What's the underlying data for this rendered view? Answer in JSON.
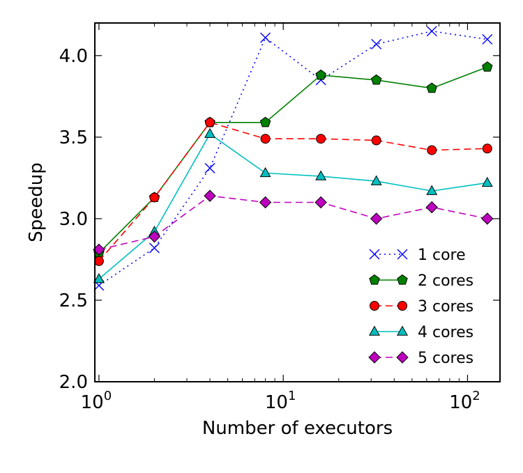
{
  "chart_data": {
    "type": "line",
    "title": "",
    "xlabel": "Number of executors",
    "ylabel": "Speedup",
    "xscale": "log",
    "xlim": [
      0.95,
      150
    ],
    "ylim": [
      2.0,
      4.2
    ],
    "x": [
      1,
      2,
      4,
      8,
      16,
      32,
      64,
      128
    ],
    "x_ticks": [
      {
        "base": "10",
        "exp": "0",
        "value": 1
      },
      {
        "base": "10",
        "exp": "1",
        "value": 10
      },
      {
        "base": "10",
        "exp": "2",
        "value": 100
      }
    ],
    "y_ticks": [
      "2.0",
      "2.5",
      "3.0",
      "3.5",
      "4.0"
    ],
    "grid": false,
    "legend_position": "lower-right",
    "series": [
      {
        "name": "1 core",
        "color": "#0000ff",
        "marker": "x",
        "linestyle": "dotted",
        "values": [
          2.59,
          2.82,
          3.31,
          4.11,
          3.85,
          4.07,
          4.15,
          4.1
        ]
      },
      {
        "name": "2 cores",
        "color": "#008000",
        "marker": "pentagon",
        "linestyle": "solid",
        "values": [
          2.79,
          3.13,
          3.59,
          3.59,
          3.88,
          3.85,
          3.8,
          3.93
        ]
      },
      {
        "name": "3 cores",
        "color": "#ff0000",
        "marker": "circle",
        "linestyle": "dashed",
        "values": [
          2.74,
          3.13,
          3.59,
          3.49,
          3.49,
          3.48,
          3.42,
          3.43
        ]
      },
      {
        "name": "4 cores",
        "color": "#00bfbf",
        "marker": "triangle",
        "linestyle": "solid",
        "values": [
          2.63,
          2.92,
          3.52,
          3.28,
          3.26,
          3.23,
          3.17,
          3.22
        ]
      },
      {
        "name": "5 cores",
        "color": "#bf00bf",
        "marker": "diamond",
        "linestyle": "dashed",
        "values": [
          2.81,
          2.89,
          3.14,
          3.1,
          3.1,
          3.0,
          3.07,
          3.0
        ]
      }
    ]
  }
}
